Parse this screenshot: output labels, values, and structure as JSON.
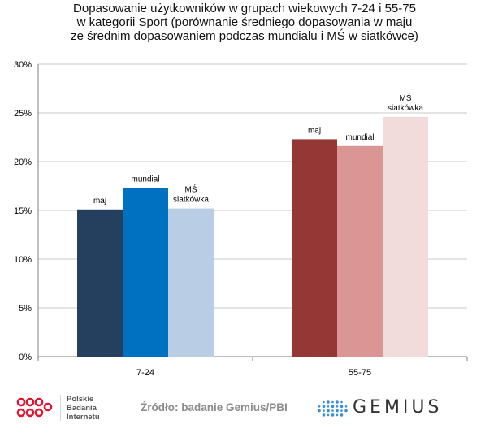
{
  "chart_title": [
    "Dopasowanie użytkowników w grupach wiekowych 7-24 i 55-75",
    "w kategorii Sport (porównanie średniego dopasowania w maju",
    "ze średnim dopasowaniem podczas mundialu i MŚ w siatkówce)"
  ],
  "chart_data": {
    "type": "bar",
    "categories": [
      "7-24",
      "55-75"
    ],
    "series_labels": [
      [
        "maj",
        "mundial",
        "MŚ\nsiatkówka"
      ],
      [
        "maj",
        "mundial",
        "MŚ\nsiatkówka"
      ]
    ],
    "values": [
      [
        15.1,
        17.3,
        15.2
      ],
      [
        22.3,
        21.6,
        24.6
      ]
    ],
    "colors": [
      [
        "#253f5e",
        "#0070c0",
        "#b9cde5"
      ],
      [
        "#953735",
        "#da9694",
        "#f2dcdb"
      ]
    ],
    "ylim": [
      0,
      30
    ],
    "yticks": [
      "0%",
      "5%",
      "10%",
      "15%",
      "20%",
      "25%",
      "30%"
    ],
    "grid": true,
    "xlabel": "",
    "ylabel": ""
  },
  "footer": {
    "pbi_lines": [
      "Polskie",
      "Badania",
      "Internetu"
    ],
    "source": "Źródło: badanie Gemius/PBI",
    "gemius": "GEMIUS",
    "pbi_color": "#e8112d",
    "gemius_dot_color": "#3a8fd9"
  }
}
